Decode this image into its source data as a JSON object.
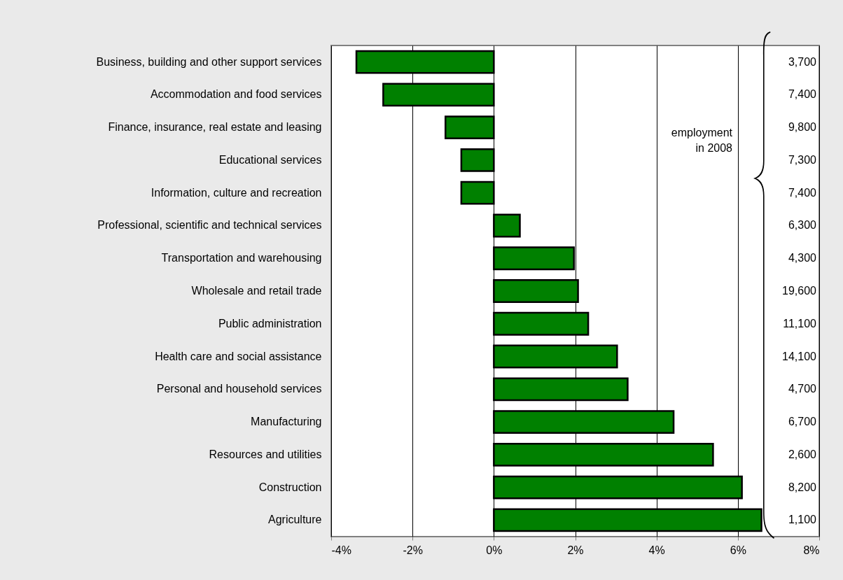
{
  "chart_data": {
    "type": "bar",
    "orientation": "horizontal",
    "categories": [
      "Business, building and other support services",
      "Accommodation and food services",
      "Finance, insurance, real estate and leasing",
      "Educational services",
      "Information, culture and recreation",
      "Professional, scientific and technical services",
      "Transportation and warehousing",
      "Wholesale and retail trade",
      "Public administration",
      "Health care and social assistance",
      "Personal and household services",
      "Manufacturing",
      "Resources and utilities",
      "Construction",
      "Agriculture"
    ],
    "values": [
      -3.38,
      -2.72,
      -1.19,
      -0.8,
      -0.8,
      0.64,
      1.97,
      2.07,
      2.32,
      3.03,
      3.29,
      4.42,
      5.39,
      6.1,
      6.58
    ],
    "color": "#008000",
    "xlim": [
      -4,
      8
    ],
    "xticks": [
      {
        "value": -4,
        "label": "-4%"
      },
      {
        "value": -2,
        "label": "-2%"
      },
      {
        "value": 0,
        "label": "0%"
      },
      {
        "value": 2,
        "label": "2%"
      },
      {
        "value": 4,
        "label": "4%"
      },
      {
        "value": 6,
        "label": "6%"
      },
      {
        "value": 8,
        "label": "8%"
      }
    ],
    "grid": "x",
    "annotations": [
      "employment\nin 2008",
      "3,700",
      "7,400",
      "9,800",
      "7,300",
      "7,400",
      "6,300",
      "4,300",
      "19,600",
      "11,100",
      "14,100",
      "4,700",
      "6,700",
      "2,600",
      "8,200",
      "1,100"
    ]
  }
}
